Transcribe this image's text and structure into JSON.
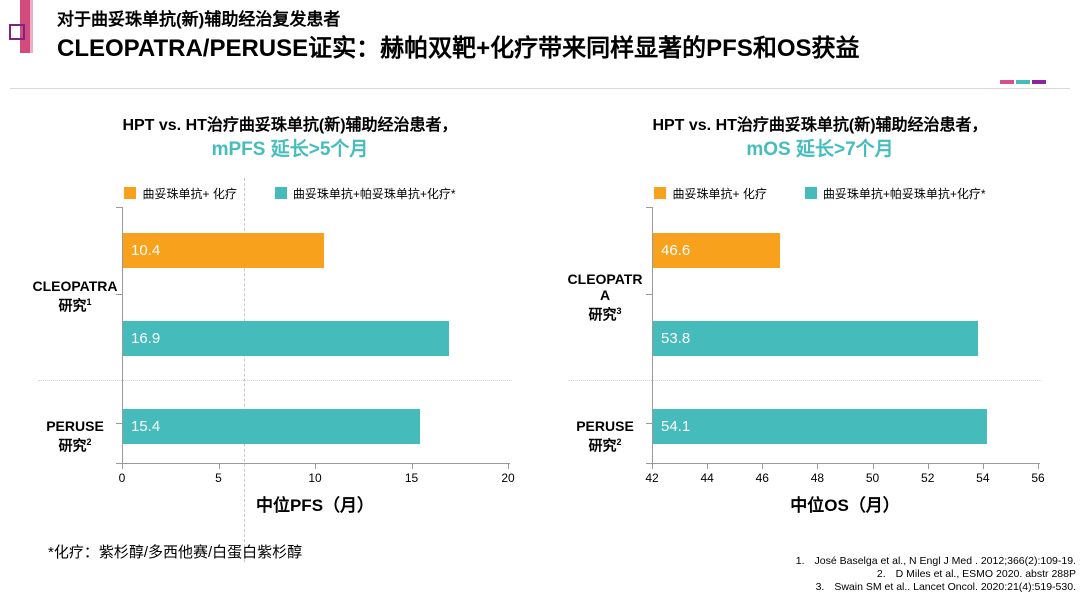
{
  "header": {
    "subtitle": "对于曲妥珠单抗(新)辅助经治复发患者",
    "title": "CLEOPATRA/PERUSE证实：赫帕双靶+化疗带来同样显著的PFS和OS获益"
  },
  "colors": {
    "orange": "#F7A11C",
    "teal": "#45BCBB",
    "accent_pink": "#D7508C",
    "accent_teal": "#45BCBC",
    "accent_purple": "#8A24A2"
  },
  "chart_data": [
    {
      "type": "bar",
      "orientation": "horizontal",
      "title_line1": "HPT vs. HT治疗曲妥珠单抗(新)辅助经治患者，",
      "title_line2": "mPFS 延长>5个月",
      "legend": [
        {
          "label": "曲妥珠单抗+ 化疗",
          "color": "orange"
        },
        {
          "label": "曲妥珠单抗+帕妥珠单抗+化疗*",
          "color": "teal"
        }
      ],
      "categories": [
        {
          "name": "CLEOPATRA",
          "study": "研究",
          "ref": "1"
        },
        {
          "name": "PERUSE",
          "study": "研究",
          "ref": "2"
        }
      ],
      "bars": [
        {
          "category": "CLEOPATRA",
          "series": "曲妥珠单抗+ 化疗",
          "value": 10.4,
          "color": "orange"
        },
        {
          "category": "CLEOPATRA",
          "series": "曲妥珠单抗+帕妥珠单抗+化疗*",
          "value": 16.9,
          "color": "teal"
        },
        {
          "category": "PERUSE",
          "series": "曲妥珠单抗+帕妥珠单抗+化疗*",
          "value": 15.4,
          "color": "teal"
        }
      ],
      "xlabel": "中位PFS（月）",
      "xlim": [
        0,
        20
      ],
      "xticks": [
        0,
        5,
        10,
        15,
        20
      ],
      "reference_line_x": 6.3,
      "grid": "off",
      "legend_position": "top"
    },
    {
      "type": "bar",
      "orientation": "horizontal",
      "title_line1": "HPT vs. HT治疗曲妥珠单抗(新)辅助经治患者，",
      "title_line2": "mOS 延长>7个月",
      "legend": [
        {
          "label": "曲妥珠单抗+ 化疗",
          "color": "orange"
        },
        {
          "label": "曲妥珠单抗+帕妥珠单抗+化疗*",
          "color": "teal"
        }
      ],
      "categories": [
        {
          "name": "CLEOPATRA",
          "study": "研究",
          "ref": "3"
        },
        {
          "name": "PERUSE",
          "study": "研究",
          "ref": "2"
        }
      ],
      "bars": [
        {
          "category": "CLEOPATRA",
          "series": "曲妥珠单抗+ 化疗",
          "value": 46.6,
          "color": "orange"
        },
        {
          "category": "CLEOPATRA",
          "series": "曲妥珠单抗+帕妥珠单抗+化疗*",
          "value": 53.8,
          "color": "teal"
        },
        {
          "category": "PERUSE",
          "series": "曲妥珠单抗+帕妥珠单抗+化疗*",
          "value": 54.1,
          "color": "teal"
        }
      ],
      "xlabel": "中位OS（月）",
      "xlim": [
        42,
        56
      ],
      "xticks": [
        42,
        44,
        46,
        48,
        50,
        52,
        54,
        56
      ],
      "grid": "off",
      "legend_position": "top"
    }
  ],
  "footnotes": {
    "chemo_note": "*化疗：紫杉醇/多西他赛/白蛋白紫杉醇",
    "references": [
      {
        "num": "1.",
        "text": "José Baselga et al., N Engl J Med . 2012;366(2):109-19."
      },
      {
        "num": "2.",
        "text": "D Miles et al., ESMO 2020. abstr 288P"
      },
      {
        "num": "3.",
        "text": "Swain SM et al.. Lancet Oncol. 2020:21(4):519-530."
      }
    ]
  }
}
